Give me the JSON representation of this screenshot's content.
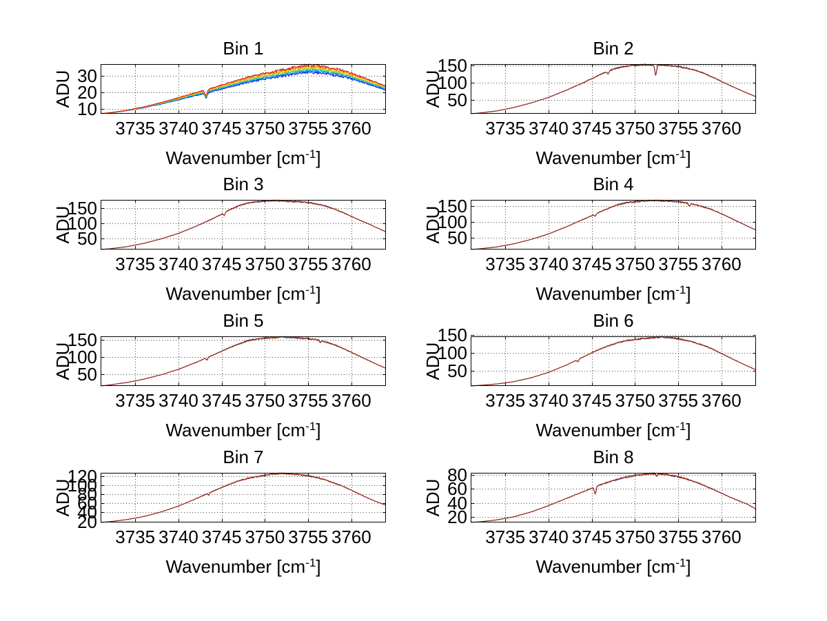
{
  "figure": {
    "background": "#ffffff",
    "n_subplots": 8,
    "xlabel_main": "Wavenumber [cm",
    "xlabel_sup": "-1",
    "xlabel_close": "]",
    "ylabel": "ADU",
    "grid_color": "#444444",
    "axis_color": "#000000"
  },
  "chart_data": [
    {
      "type": "line",
      "title": "Bin 1",
      "xlabel": "Wavenumber [cm^-1]",
      "ylabel": "ADU",
      "xlim": [
        3731,
        3764
      ],
      "xticks": [
        3735,
        3740,
        3745,
        3750,
        3755,
        3760
      ],
      "yticks": [
        10,
        20,
        30
      ],
      "grid": true,
      "legend": "none",
      "series_note": "8 overlapping exposure traces, rainbow-offset, peak ~35 ADU at 3754-3756",
      "trace_colors": [
        "#0000cc",
        "#0055ff",
        "#00bbee",
        "#33cc66",
        "#bbcc22",
        "#ffcc00",
        "#ff7700",
        "#cc1111"
      ],
      "spread": 4.2,
      "noise": 0.9,
      "dips": [
        {
          "x": 3743.2,
          "depth": 3.2,
          "width": 0.2
        }
      ],
      "control_x": [
        3731,
        3732,
        3734,
        3736,
        3738,
        3740,
        3742,
        3744,
        3746,
        3748,
        3750,
        3752,
        3754,
        3755,
        3756,
        3758,
        3760,
        3762,
        3764
      ],
      "control_y": [
        7,
        7.4,
        8.8,
        10.8,
        13.2,
        16,
        18.8,
        21.6,
        24.6,
        27.4,
        29.8,
        31.6,
        33.6,
        34.2,
        34,
        32.4,
        29.8,
        26.2,
        22.5
      ]
    },
    {
      "type": "line",
      "title": "Bin 2",
      "xlabel": "Wavenumber [cm^-1]",
      "ylabel": "ADU",
      "xlim": [
        3731,
        3764
      ],
      "xticks": [
        3735,
        3740,
        3745,
        3750,
        3755,
        3760
      ],
      "yticks": [
        50,
        100,
        150
      ],
      "grid": true,
      "legend": "none",
      "series_note": "3 overlapping traces, peak ~152 ADU near 3750, sharp absorption dip at 3752.4",
      "trace_colors": [
        "#1133bb",
        "#ee8822",
        "#8b1a1a"
      ],
      "spread": 0,
      "noise": 2.2,
      "dips": [
        {
          "x": 3746.9,
          "depth": 9,
          "width": 0.12
        },
        {
          "x": 3752.4,
          "depth": 30,
          "width": 0.13
        }
      ],
      "control_x": [
        3731,
        3732,
        3734,
        3736,
        3738,
        3740,
        3742,
        3744,
        3746,
        3747,
        3748,
        3749,
        3750,
        3751,
        3752,
        3753,
        3754,
        3755,
        3756,
        3757,
        3758,
        3759,
        3760,
        3761,
        3762,
        3763,
        3764
      ],
      "control_y": [
        11,
        13,
        19,
        29,
        42,
        58,
        78,
        100,
        124,
        135,
        143,
        148,
        151,
        152,
        151,
        151,
        150,
        147,
        142,
        136,
        127,
        116,
        104,
        92,
        81,
        70,
        60
      ]
    },
    {
      "type": "line",
      "title": "Bin 3",
      "xlabel": "Wavenumber [cm^-1]",
      "ylabel": "ADU",
      "xlim": [
        3731,
        3764
      ],
      "xticks": [
        3735,
        3740,
        3745,
        3750,
        3755,
        3760
      ],
      "yticks": [
        50,
        100,
        150
      ],
      "grid": true,
      "legend": "none",
      "series_note": "3 overlapping traces, peak ~175 ADU near 3750",
      "trace_colors": [
        "#1133bb",
        "#ee8822",
        "#8b1a1a"
      ],
      "spread": 0,
      "noise": 2.5,
      "dips": [
        {
          "x": 3745.3,
          "depth": 9,
          "width": 0.12
        }
      ],
      "control_x": [
        3731,
        3732,
        3734,
        3736,
        3738,
        3740,
        3742,
        3744,
        3745,
        3746,
        3747,
        3748,
        3749,
        3750,
        3751,
        3752,
        3753,
        3754,
        3755,
        3756,
        3757,
        3758,
        3759,
        3760,
        3761,
        3762,
        3763,
        3764
      ],
      "control_y": [
        14,
        16,
        23,
        34,
        49,
        67,
        90,
        116,
        130,
        146,
        158,
        167,
        171,
        173,
        175,
        174,
        172,
        171,
        169,
        164,
        157,
        147,
        136,
        123,
        110,
        98,
        85,
        72
      ]
    },
    {
      "type": "line",
      "title": "Bin 4",
      "xlabel": "Wavenumber [cm^-1]",
      "ylabel": "ADU",
      "xlim": [
        3731,
        3764
      ],
      "xticks": [
        3735,
        3740,
        3745,
        3750,
        3755,
        3760
      ],
      "yticks": [
        50,
        100,
        150
      ],
      "grid": true,
      "legend": "none",
      "series_note": "3 overlapping traces, peak ~167 ADU near 3752",
      "trace_colors": [
        "#1133bb",
        "#ee8822",
        "#8b1a1a"
      ],
      "spread": 0,
      "noise": 2.4,
      "dips": [
        {
          "x": 3745.4,
          "depth": 7,
          "width": 0.12
        },
        {
          "x": 3756.3,
          "depth": 9,
          "width": 0.12
        }
      ],
      "control_x": [
        3731,
        3732,
        3734,
        3736,
        3738,
        3740,
        3742,
        3744,
        3745,
        3746,
        3747,
        3748,
        3749,
        3750,
        3751,
        3752,
        3753,
        3754,
        3755,
        3756,
        3757,
        3758,
        3759,
        3760,
        3761,
        3762,
        3763,
        3764
      ],
      "control_y": [
        12,
        14,
        20,
        30,
        44,
        61,
        83,
        107,
        119,
        131,
        143,
        153,
        160,
        163,
        165,
        167,
        166,
        165,
        163,
        159,
        154,
        146,
        137,
        125,
        112,
        99,
        86,
        73
      ]
    },
    {
      "type": "line",
      "title": "Bin 5",
      "xlabel": "Wavenumber [cm^-1]",
      "ylabel": "ADU",
      "xlim": [
        3731,
        3764
      ],
      "xticks": [
        3735,
        3740,
        3745,
        3750,
        3755,
        3760
      ],
      "yticks": [
        50,
        100,
        150
      ],
      "grid": true,
      "legend": "none",
      "series_note": "3 overlapping traces, peak ~159 ADU near 3752",
      "trace_colors": [
        "#1133bb",
        "#ee8822",
        "#8b1a1a"
      ],
      "spread": 0,
      "noise": 2.4,
      "dips": [
        {
          "x": 3743.3,
          "depth": 7,
          "width": 0.12
        },
        {
          "x": 3756.4,
          "depth": 6,
          "width": 0.12
        }
      ],
      "control_x": [
        3731,
        3732,
        3734,
        3736,
        3738,
        3740,
        3742,
        3744,
        3745,
        3746,
        3747,
        3748,
        3749,
        3750,
        3751,
        3752,
        3753,
        3754,
        3755,
        3756,
        3757,
        3758,
        3759,
        3760,
        3761,
        3762,
        3763,
        3764
      ],
      "control_y": [
        15,
        18,
        25,
        35,
        48,
        64,
        84,
        106,
        117,
        129,
        139,
        148,
        153,
        156,
        157,
        159,
        158,
        156,
        154,
        151,
        145,
        137,
        126,
        114,
        102,
        90,
        78,
        67
      ]
    },
    {
      "type": "line",
      "title": "Bin 6",
      "xlabel": "Wavenumber [cm^-1]",
      "ylabel": "ADU",
      "xlim": [
        3731,
        3764
      ],
      "xticks": [
        3735,
        3740,
        3745,
        3750,
        3755,
        3760
      ],
      "yticks": [
        50,
        100,
        150
      ],
      "grid": true,
      "legend": "none",
      "series_note": "3 overlapping traces, peak ~147 ADU near 3752",
      "trace_colors": [
        "#1133bb",
        "#ee8822",
        "#8b1a1a"
      ],
      "spread": 0,
      "noise": 2.2,
      "dips": [
        {
          "x": 3743.4,
          "depth": 7,
          "width": 0.12
        }
      ],
      "control_x": [
        3731,
        3732,
        3734,
        3736,
        3738,
        3740,
        3742,
        3744,
        3745,
        3746,
        3747,
        3748,
        3749,
        3750,
        3751,
        3752,
        3753,
        3754,
        3755,
        3756,
        3757,
        3758,
        3759,
        3760,
        3761,
        3762,
        3763,
        3764
      ],
      "control_y": [
        8,
        9.5,
        13.5,
        20,
        31,
        46,
        66,
        89,
        101,
        112,
        121,
        129,
        135,
        138,
        141,
        143,
        145,
        144,
        140,
        135,
        129,
        121,
        111,
        99,
        87,
        75,
        64,
        53
      ]
    },
    {
      "type": "line",
      "title": "Bin 7",
      "xlabel": "Wavenumber [cm^-1]",
      "ylabel": "ADU",
      "xlim": [
        3731,
        3764
      ],
      "xticks": [
        3735,
        3740,
        3745,
        3750,
        3755,
        3760
      ],
      "yticks": [
        20,
        40,
        60,
        80,
        100,
        120
      ],
      "grid": true,
      "legend": "none",
      "series_note": "3 overlapping traces, peak ~127 ADU near 3752",
      "trace_colors": [
        "#1133bb",
        "#ee8822",
        "#8b1a1a"
      ],
      "spread": 0,
      "noise": 1.7,
      "dips": [
        {
          "x": 3743.5,
          "depth": 5,
          "width": 0.1
        }
      ],
      "control_x": [
        3731,
        3732,
        3734,
        3736,
        3738,
        3740,
        3742,
        3744,
        3745,
        3746,
        3747,
        3748,
        3749,
        3750,
        3751,
        3752,
        3753,
        3754,
        3755,
        3756,
        3757,
        3758,
        3759,
        3760,
        3761,
        3762,
        3763,
        3764
      ],
      "control_y": [
        18,
        19.5,
        24,
        31,
        41,
        54,
        70,
        87,
        95,
        103,
        110,
        115,
        119,
        122,
        125,
        126,
        125,
        123,
        121,
        117,
        112,
        105,
        98,
        89,
        80,
        71,
        63,
        56
      ]
    },
    {
      "type": "line",
      "title": "Bin 8",
      "xlabel": "Wavenumber [cm^-1]",
      "ylabel": "ADU",
      "xlim": [
        3731,
        3764
      ],
      "xticks": [
        3735,
        3740,
        3745,
        3750,
        3755,
        3760
      ],
      "yticks": [
        20,
        40,
        60,
        80
      ],
      "grid": true,
      "legend": "none",
      "series_note": "3 overlapping traces, peak ~83 ADU near 3751, notch dip at 3745.4",
      "trace_colors": [
        "#1133bb",
        "#ee8822",
        "#8b1a1a"
      ],
      "spread": 0,
      "noise": 1.3,
      "dips": [
        {
          "x": 3745.4,
          "depth": 10,
          "width": 0.14
        },
        {
          "x": 3752.5,
          "depth": 4,
          "width": 0.1
        }
      ],
      "control_x": [
        3731,
        3732,
        3734,
        3736,
        3738,
        3740,
        3742,
        3744,
        3745,
        3746,
        3747,
        3748,
        3749,
        3750,
        3751,
        3752,
        3753,
        3754,
        3755,
        3756,
        3757,
        3758,
        3759,
        3760,
        3761,
        3762,
        3763,
        3764
      ],
      "control_y": [
        12,
        12.7,
        15.5,
        20,
        27,
        36,
        46,
        56,
        61,
        66,
        70,
        74,
        77,
        79,
        81,
        82,
        81.5,
        80,
        77.5,
        74,
        70,
        65,
        59.5,
        54,
        48,
        43,
        38,
        31
      ]
    }
  ]
}
